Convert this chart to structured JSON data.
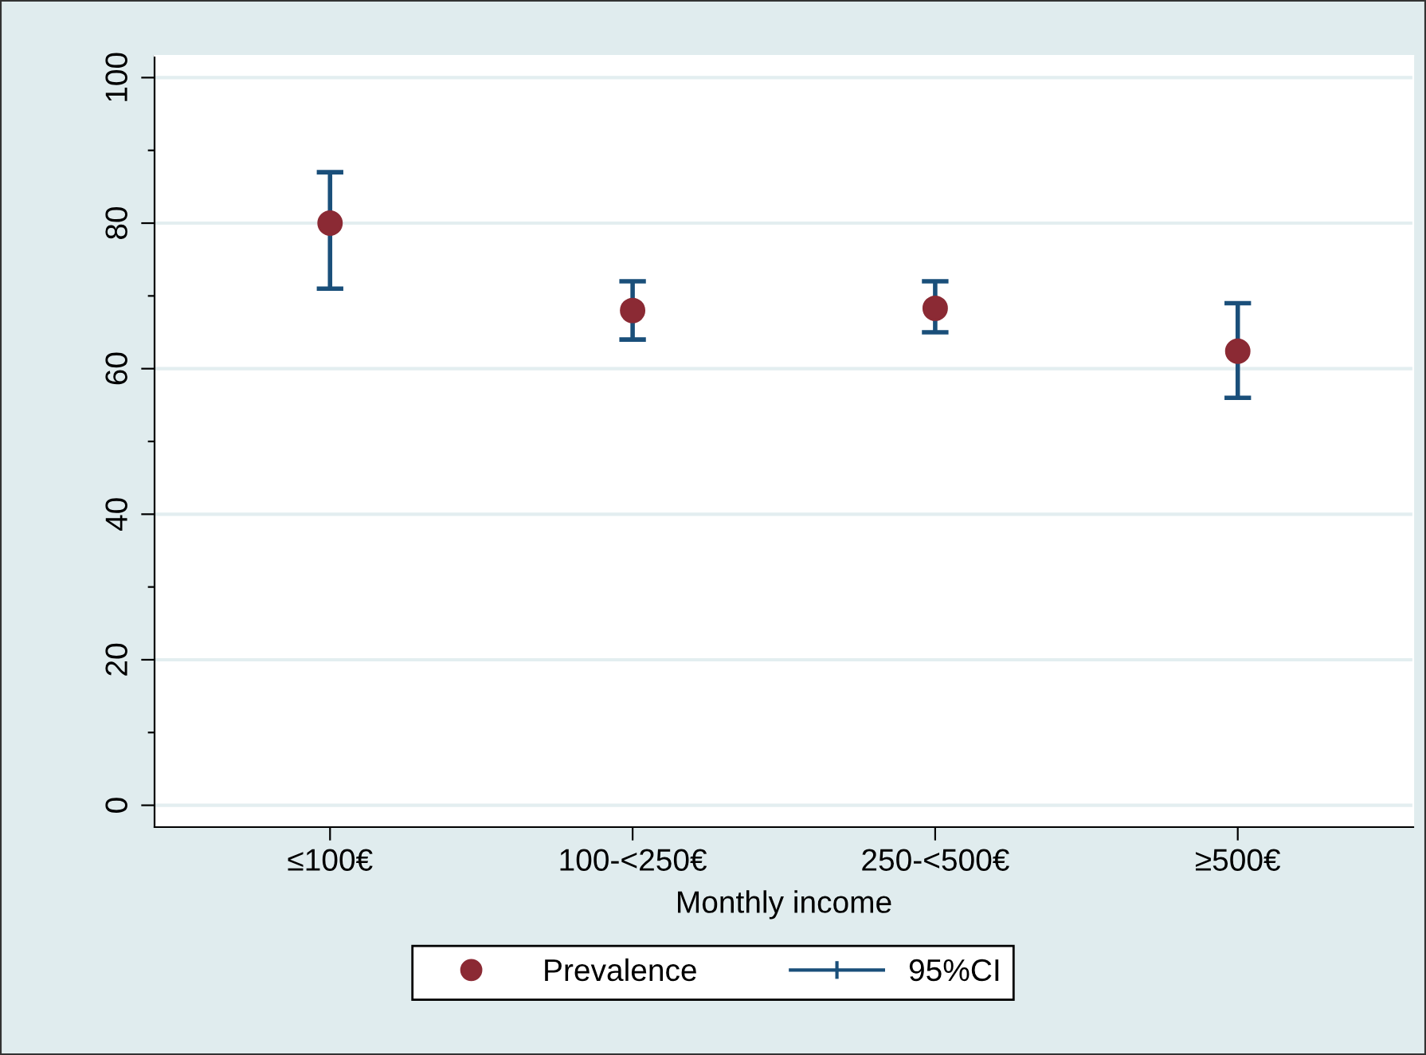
{
  "chart_data": {
    "type": "scatter",
    "xlabel": "Monthly income",
    "categories": [
      "≤100€",
      "100-<250€",
      "250-<500€",
      "≥500€"
    ],
    "series": [
      {
        "name": "Prevalence",
        "marker": "circle",
        "color": "#8b2a34",
        "values": [
          80,
          68,
          68.3,
          62.4
        ],
        "errors": [
          [
            71,
            87
          ],
          [
            64,
            72
          ],
          [
            65,
            72
          ],
          [
            56,
            69
          ]
        ]
      }
    ],
    "annotations": [
      "95%CI"
    ],
    "ylim": [
      -3,
      103
    ],
    "yticks": [
      0,
      {
        "value": 10,
        "label": null
      },
      20,
      {
        "value": 30,
        "label": null
      },
      40,
      {
        "value": 50,
        "label": null
      },
      60,
      {
        "value": 70,
        "label": null
      },
      80,
      {
        "value": 90,
        "label": null
      },
      100
    ],
    "grid": "y",
    "legend": "bottom"
  }
}
